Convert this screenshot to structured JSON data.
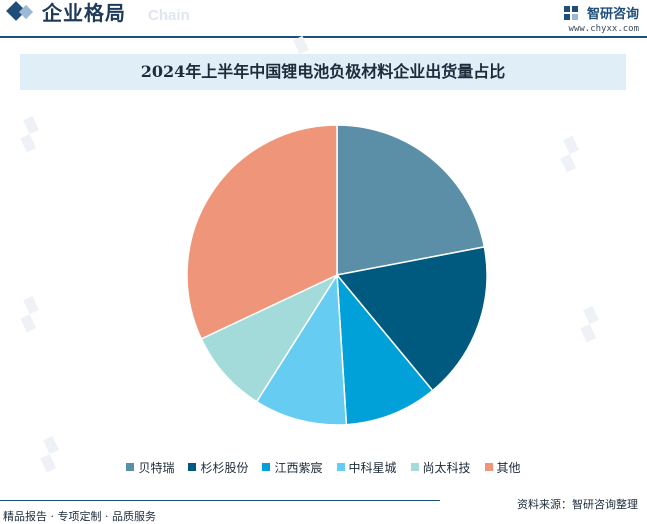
{
  "header": {
    "section_title": "企业格局",
    "section_watermark": "Chain",
    "brand_name": "智研咨询",
    "brand_url": "www.chyxx.com"
  },
  "chart_data": {
    "type": "pie",
    "title": "2024年上半年中国锂电池负极材料企业出货量占比",
    "categories": [
      "贝特瑞",
      "杉杉股份",
      "江西紫宸",
      "中科星城",
      "尚太科技",
      "其他"
    ],
    "values": [
      22,
      17,
      10,
      10,
      9,
      32
    ],
    "unit": "%",
    "colors": [
      "#5b8fa8",
      "#005a80",
      "#00a0d8",
      "#66ccf2",
      "#a3dada",
      "#ef957a"
    ],
    "start_angle_deg": 0,
    "direction": "clockwise",
    "legend_position": "bottom"
  },
  "footer": {
    "left": "精品报告 · 专项定制 · 品质服务",
    "right": "资料来源：智研咨询整理"
  }
}
